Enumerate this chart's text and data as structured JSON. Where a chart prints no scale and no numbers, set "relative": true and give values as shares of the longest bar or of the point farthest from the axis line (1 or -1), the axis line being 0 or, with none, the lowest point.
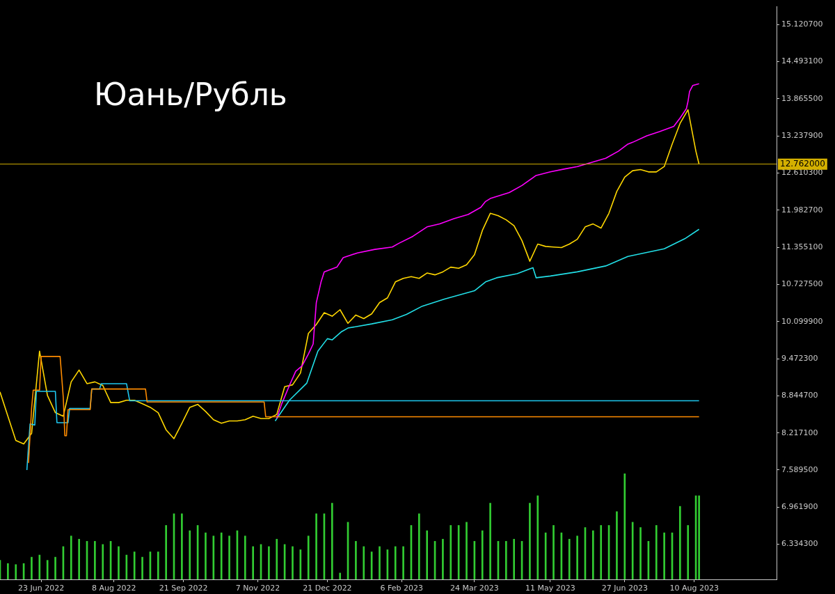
{
  "chart_data": [
    {
      "type": "line",
      "title": "Юань/Рубль",
      "xlim": [
        "2022-05-28",
        "2023-10-01"
      ],
      "ylim": [
        5.741,
        15.423
      ],
      "tick_labels": "y",
      "grid": false,
      "marker": "none",
      "line_style": "solid",
      "yticks": [
        {
          "value": 15.1207,
          "label": "15.120700"
        },
        {
          "value": 14.4931,
          "label": "14.493100"
        },
        {
          "value": 13.8655,
          "label": "13.865500"
        },
        {
          "value": 13.2379,
          "label": "13.237900"
        },
        {
          "value": 12.6103,
          "label": "12.610300"
        },
        {
          "value": 11.9827,
          "label": "11.982700"
        },
        {
          "value": 11.3551,
          "label": "11.355100"
        },
        {
          "value": 10.7275,
          "label": "10.727500"
        },
        {
          "value": 10.0999,
          "label": "10.099900"
        },
        {
          "value": 9.4723,
          "label": "9.472300"
        },
        {
          "value": 8.8447,
          "label": "8.844700"
        },
        {
          "value": 8.2171,
          "label": "8.217100"
        },
        {
          "value": 7.5895,
          "label": "7.589500"
        },
        {
          "value": 6.9619,
          "label": "6.961900"
        },
        {
          "value": 6.3343,
          "label": "6.334300"
        }
      ],
      "ref_lines": [
        {
          "axis": "y",
          "value": 12.762,
          "label": "12.762000",
          "color": "#d4b000"
        }
      ],
      "series": [
        {
          "color": "#ff8c00",
          "x": [
            "2022-06-15",
            "2022-06-17",
            "2022-06-18",
            "2022-06-22",
            "2022-06-23",
            "2022-07-05",
            "2022-07-06",
            "2022-07-07",
            "2022-07-08",
            "2022-07-09",
            "2022-07-10",
            "2022-07-24",
            "2022-07-25",
            "2022-08-28",
            "2022-08-29",
            "2022-11-11",
            "2022-11-12",
            "2023-08-13"
          ],
          "values": [
            7.71,
            8.64,
            8.94,
            8.94,
            9.51,
            9.51,
            9.17,
            8.82,
            8.17,
            8.17,
            8.61,
            8.61,
            8.96,
            8.96,
            8.74,
            8.74,
            8.49,
            8.49
          ]
        },
        {
          "color": "#1ec8f0",
          "x": [
            "2022-06-14",
            "2022-06-16",
            "2022-06-19",
            "2022-06-20",
            "2022-07-02",
            "2022-07-03",
            "2022-07-10",
            "2022-07-11",
            "2022-07-24",
            "2022-07-25",
            "2022-07-30",
            "2022-07-31",
            "2022-08-16",
            "2022-08-18",
            "2023-08-13"
          ],
          "values": [
            7.59,
            8.37,
            8.35,
            8.92,
            8.92,
            8.39,
            8.39,
            8.63,
            8.63,
            8.96,
            8.96,
            9.05,
            9.05,
            8.76,
            8.76
          ]
        },
        {
          "color": "#ff00ff",
          "x": [
            "2022-11-19",
            "2022-11-22",
            "2022-11-27",
            "2022-12-01",
            "2022-12-05",
            "2022-12-09",
            "2022-12-12",
            "2022-12-14",
            "2022-12-17",
            "2022-12-19",
            "2022-12-27",
            "2022-12-31",
            "2023-01-09",
            "2023-01-20",
            "2023-01-31",
            "2023-02-04",
            "2023-02-13",
            "2023-02-22",
            "2023-03-02",
            "2023-03-11",
            "2023-03-20",
            "2023-03-28",
            "2023-03-31",
            "2023-04-03",
            "2023-04-15",
            "2023-04-23",
            "2023-05-02",
            "2023-05-11",
            "2023-05-20",
            "2023-05-28",
            "2023-06-06",
            "2023-06-15",
            "2023-06-23",
            "2023-06-29",
            "2023-07-02",
            "2023-07-11",
            "2023-07-19",
            "2023-07-28",
            "2023-08-01",
            "2023-08-05",
            "2023-08-06",
            "2023-08-07",
            "2023-08-09",
            "2023-08-13"
          ],
          "values": [
            8.46,
            8.7,
            9.02,
            9.26,
            9.35,
            9.55,
            9.72,
            10.42,
            10.77,
            10.94,
            11.02,
            11.18,
            11.26,
            11.32,
            11.36,
            11.42,
            11.54,
            11.7,
            11.75,
            11.84,
            11.91,
            12.03,
            12.13,
            12.18,
            12.28,
            12.4,
            12.57,
            12.63,
            12.68,
            12.72,
            12.79,
            12.86,
            12.98,
            13.1,
            13.13,
            13.24,
            13.31,
            13.4,
            13.54,
            13.7,
            13.82,
            13.99,
            14.09,
            14.12
          ]
        },
        {
          "color": "#22e0e8",
          "x": [
            "2022-11-18",
            "2022-11-27",
            "2022-12-08",
            "2022-12-15",
            "2022-12-21",
            "2022-12-24",
            "2022-12-30",
            "2023-01-03",
            "2023-01-18",
            "2023-01-31",
            "2023-02-09",
            "2023-02-19",
            "2023-03-05",
            "2023-03-24",
            "2023-03-31",
            "2023-04-07",
            "2023-04-20",
            "2023-04-30",
            "2023-05-02",
            "2023-05-11",
            "2023-05-28",
            "2023-06-15",
            "2023-06-29",
            "2023-07-22",
            "2023-08-04",
            "2023-08-13"
          ],
          "values": [
            8.42,
            8.77,
            9.06,
            9.6,
            9.81,
            9.79,
            9.93,
            9.99,
            10.06,
            10.13,
            10.22,
            10.36,
            10.48,
            10.62,
            10.77,
            10.84,
            10.91,
            11.01,
            10.84,
            10.87,
            10.94,
            11.04,
            11.2,
            11.33,
            11.5,
            11.66
          ]
        },
        {
          "color": "#ffd700",
          "x": [
            "2022-05-28",
            "2022-06-02",
            "2022-06-07",
            "2022-06-12",
            "2022-06-17",
            "2022-06-22",
            "2022-06-27",
            "2022-07-02",
            "2022-07-07",
            "2022-07-12",
            "2022-07-17",
            "2022-07-22",
            "2022-07-27",
            "2022-08-01",
            "2022-08-06",
            "2022-08-11",
            "2022-08-16",
            "2022-08-21",
            "2022-08-26",
            "2022-08-31",
            "2022-09-05",
            "2022-09-10",
            "2022-09-15",
            "2022-09-20",
            "2022-09-25",
            "2022-09-30",
            "2022-10-05",
            "2022-10-10",
            "2022-10-15",
            "2022-10-20",
            "2022-10-25",
            "2022-10-30",
            "2022-11-04",
            "2022-11-09",
            "2022-11-14",
            "2022-11-19",
            "2022-11-24",
            "2022-11-29",
            "2022-12-04",
            "2022-12-09",
            "2022-12-14",
            "2022-12-19",
            "2022-12-24",
            "2022-12-29",
            "2023-01-03",
            "2023-01-08",
            "2023-01-13",
            "2023-01-18",
            "2023-01-23",
            "2023-01-28",
            "2023-02-02",
            "2023-02-07",
            "2023-02-12",
            "2023-02-17",
            "2023-02-22",
            "2023-02-27",
            "2023-03-04",
            "2023-03-09",
            "2023-03-14",
            "2023-03-19",
            "2023-03-24",
            "2023-03-29",
            "2023-04-03",
            "2023-04-08",
            "2023-04-13",
            "2023-04-18",
            "2023-04-23",
            "2023-04-28",
            "2023-05-03",
            "2023-05-08",
            "2023-05-13",
            "2023-05-18",
            "2023-05-23",
            "2023-05-28",
            "2023-06-02",
            "2023-06-07",
            "2023-06-12",
            "2023-06-17",
            "2023-06-22",
            "2023-06-27",
            "2023-07-02",
            "2023-07-07",
            "2023-07-12",
            "2023-07-17",
            "2023-07-22",
            "2023-07-27",
            "2023-08-01",
            "2023-08-06",
            "2023-08-11",
            "2023-08-13"
          ],
          "values": [
            8.91,
            8.5,
            8.09,
            8.03,
            8.21,
            9.6,
            8.85,
            8.56,
            8.5,
            9.08,
            9.28,
            9.05,
            9.08,
            9.02,
            8.73,
            8.73,
            8.77,
            8.77,
            8.71,
            8.65,
            8.56,
            8.27,
            8.12,
            8.38,
            8.65,
            8.7,
            8.58,
            8.44,
            8.38,
            8.42,
            8.42,
            8.44,
            8.5,
            8.46,
            8.46,
            8.53,
            9.0,
            9.03,
            9.23,
            9.9,
            10.05,
            10.25,
            10.19,
            10.3,
            10.07,
            10.21,
            10.15,
            10.23,
            10.42,
            10.5,
            10.77,
            10.83,
            10.86,
            10.83,
            10.92,
            10.89,
            10.94,
            11.02,
            11.0,
            11.06,
            11.23,
            11.64,
            11.93,
            11.89,
            11.82,
            11.72,
            11.47,
            11.12,
            11.41,
            11.37,
            11.36,
            11.35,
            11.41,
            11.49,
            11.7,
            11.75,
            11.68,
            11.93,
            12.3,
            12.54,
            12.65,
            12.67,
            12.63,
            12.63,
            12.72,
            13.1,
            13.45,
            13.68,
            12.98,
            12.76
          ]
        }
      ]
    },
    {
      "type": "bar",
      "relative": true,
      "tick_labels": "x",
      "grid": false,
      "xlim": [
        "2022-05-28",
        "2023-10-01"
      ],
      "xticks": [
        {
          "value": "2022-06-23",
          "label": "23 Jun 2022"
        },
        {
          "value": "2022-08-08",
          "label": "8 Aug 2022"
        },
        {
          "value": "2022-09-21",
          "label": "21 Sep 2022"
        },
        {
          "value": "2022-11-07",
          "label": "7 Nov 2022"
        },
        {
          "value": "2022-12-21",
          "label": "21 Dec 2022"
        },
        {
          "value": "2023-02-06",
          "label": "6 Feb 2023"
        },
        {
          "value": "2023-03-24",
          "label": "24 Mar 2023"
        },
        {
          "value": "2023-05-11",
          "label": "11 May 2023"
        },
        {
          "value": "2023-06-27",
          "label": "27 Jun 2023"
        },
        {
          "value": "2023-08-10",
          "label": "10 Aug 2023"
        }
      ],
      "series": [
        {
          "color": "#32cd32",
          "x": [
            "2022-05-28",
            "2022-06-02",
            "2022-06-07",
            "2022-06-12",
            "2022-06-17",
            "2022-06-22",
            "2022-06-27",
            "2022-07-02",
            "2022-07-07",
            "2022-07-12",
            "2022-07-17",
            "2022-07-22",
            "2022-07-27",
            "2022-08-01",
            "2022-08-06",
            "2022-08-11",
            "2022-08-16",
            "2022-08-21",
            "2022-08-26",
            "2022-08-31",
            "2022-09-05",
            "2022-09-10",
            "2022-09-15",
            "2022-09-20",
            "2022-09-25",
            "2022-09-30",
            "2022-10-05",
            "2022-10-10",
            "2022-10-15",
            "2022-10-20",
            "2022-10-25",
            "2022-10-30",
            "2022-11-04",
            "2022-11-09",
            "2022-11-14",
            "2022-11-19",
            "2022-11-24",
            "2022-11-29",
            "2022-12-04",
            "2022-12-09",
            "2022-12-14",
            "2022-12-19",
            "2022-12-24",
            "2022-12-29",
            "2023-01-03",
            "2023-01-08",
            "2023-01-13",
            "2023-01-18",
            "2023-01-23",
            "2023-01-28",
            "2023-02-02",
            "2023-02-07",
            "2023-02-12",
            "2023-02-17",
            "2023-02-22",
            "2023-02-27",
            "2023-03-04",
            "2023-03-09",
            "2023-03-14",
            "2023-03-19",
            "2023-03-24",
            "2023-03-29",
            "2023-04-03",
            "2023-04-08",
            "2023-04-13",
            "2023-04-18",
            "2023-04-23",
            "2023-04-28",
            "2023-05-03",
            "2023-05-08",
            "2023-05-13",
            "2023-05-18",
            "2023-05-23",
            "2023-05-28",
            "2023-06-02",
            "2023-06-07",
            "2023-06-12",
            "2023-06-17",
            "2023-06-22",
            "2023-06-27",
            "2023-07-02",
            "2023-07-07",
            "2023-07-12",
            "2023-07-17",
            "2023-07-22",
            "2023-07-27",
            "2023-08-01",
            "2023-08-06",
            "2023-08-11",
            "2023-08-13"
          ],
          "values": [
            0.18,
            0.15,
            0.14,
            0.15,
            0.21,
            0.23,
            0.18,
            0.21,
            0.31,
            0.41,
            0.38,
            0.36,
            0.36,
            0.33,
            0.36,
            0.31,
            0.23,
            0.26,
            0.21,
            0.26,
            0.26,
            0.51,
            0.62,
            0.62,
            0.46,
            0.51,
            0.44,
            0.41,
            0.44,
            0.41,
            0.46,
            0.41,
            0.31,
            0.33,
            0.31,
            0.38,
            0.33,
            0.31,
            0.28,
            0.41,
            0.62,
            0.62,
            0.72,
            0.06,
            0.54,
            0.36,
            0.31,
            0.26,
            0.31,
            0.28,
            0.31,
            0.31,
            0.51,
            0.62,
            0.46,
            0.36,
            0.38,
            0.51,
            0.51,
            0.54,
            0.36,
            0.46,
            0.72,
            0.36,
            0.36,
            0.38,
            0.36,
            0.72,
            0.79,
            0.44,
            0.51,
            0.44,
            0.38,
            0.41,
            0.49,
            0.46,
            0.51,
            0.51,
            0.64,
            1,
            0.54,
            0.49,
            0.36,
            0.51,
            0.44,
            0.44,
            0.69,
            0.51,
            0.79,
            0.79
          ]
        }
      ]
    }
  ]
}
